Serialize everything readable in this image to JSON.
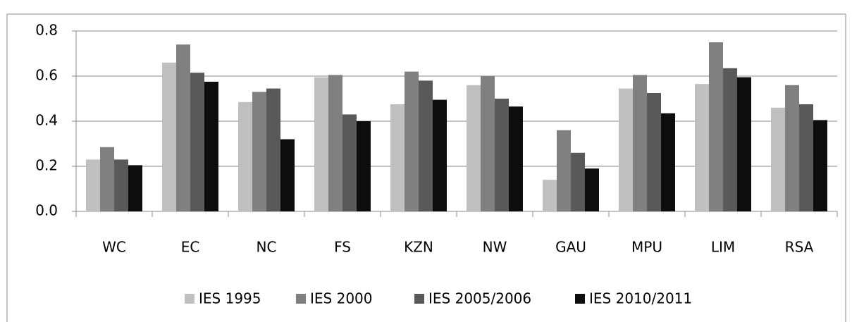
{
  "chart_data": {
    "type": "bar",
    "categories": [
      "WC",
      "EC",
      "NC",
      "FS",
      "KZN",
      "NW",
      "GAU",
      "MPU",
      "LIM",
      "RSA"
    ],
    "series": [
      {
        "name": "IES 1995",
        "color": "#c0c0c0",
        "values": [
          0.23,
          0.66,
          0.485,
          0.595,
          0.475,
          0.56,
          0.14,
          0.545,
          0.565,
          0.46
        ]
      },
      {
        "name": "IES 2000",
        "color": "#808080",
        "values": [
          0.285,
          0.74,
          0.53,
          0.605,
          0.62,
          0.6,
          0.36,
          0.605,
          0.75,
          0.56
        ]
      },
      {
        "name": "IES 2005/2006",
        "color": "#595959",
        "values": [
          0.23,
          0.615,
          0.545,
          0.43,
          0.58,
          0.5,
          0.26,
          0.525,
          0.635,
          0.475
        ]
      },
      {
        "name": "IES 2010/2011",
        "color": "#0d0d0d",
        "values": [
          0.205,
          0.575,
          0.32,
          0.4,
          0.495,
          0.465,
          0.19,
          0.435,
          0.595,
          0.405
        ]
      }
    ],
    "ylim": [
      0,
      0.8
    ],
    "yticks": [
      {
        "value": 0,
        "label": "0.0"
      },
      0.2,
      0.4,
      0.6,
      0.8
    ],
    "grid": true,
    "legend": "bottom"
  }
}
